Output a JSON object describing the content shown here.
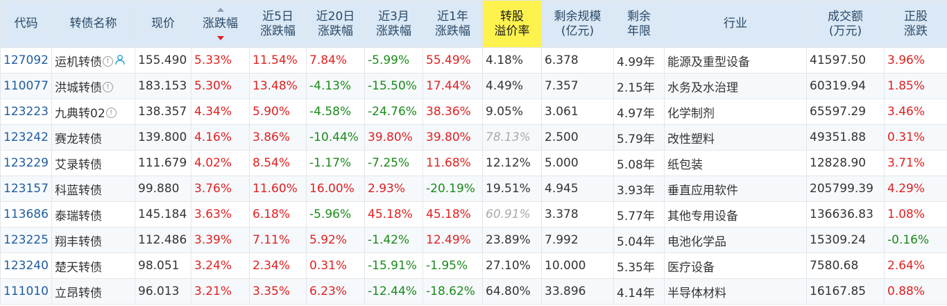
{
  "headers": [
    [
      "代码"
    ],
    [
      "转债名称"
    ],
    [
      "现价"
    ],
    [
      "涨跌幅"
    ],
    [
      "近5日",
      "涨跌幅"
    ],
    [
      "近20日",
      "涨跌幅"
    ],
    [
      "近3月",
      "涨跌幅"
    ],
    [
      "近1年",
      "涨跌幅"
    ],
    [
      "转股",
      "溢价率"
    ],
    [
      "剩余规模",
      "(亿元)"
    ],
    [
      "剩余",
      "年限"
    ],
    [
      "行业"
    ],
    [
      "成交额",
      "(万元)"
    ],
    [
      "正股",
      "涨跌"
    ]
  ],
  "sort_column": "涨跌幅",
  "highlight_column": "转股溢价率",
  "rows": [
    {
      "code": "127092",
      "name": "运机转债",
      "info": true,
      "person": true,
      "price": "155.490",
      "chg": "5.33%",
      "chg5": "11.54%",
      "chg20": "7.84%",
      "chg3m": "-5.99%",
      "chg1y": "55.49%",
      "premium": "4.18%",
      "premium_grey": false,
      "scale": "6.378",
      "years": "4.99年",
      "industry": "能源及重型设备",
      "turnover": "41597.50",
      "stock_chg": "3.96%"
    },
    {
      "code": "110077",
      "name": "洪城转债",
      "info": true,
      "person": false,
      "price": "183.153",
      "chg": "5.30%",
      "chg5": "13.48%",
      "chg20": "-4.13%",
      "chg3m": "-15.50%",
      "chg1y": "17.44%",
      "premium": "4.49%",
      "premium_grey": false,
      "scale": "7.357",
      "years": "2.15年",
      "industry": "水务及水治理",
      "turnover": "60319.94",
      "stock_chg": "1.85%"
    },
    {
      "code": "123223",
      "name": "九典转02",
      "info": true,
      "person": false,
      "price": "138.357",
      "chg": "4.34%",
      "chg5": "5.90%",
      "chg20": "-4.58%",
      "chg3m": "-24.76%",
      "chg1y": "38.36%",
      "premium": "9.05%",
      "premium_grey": false,
      "scale": "3.061",
      "years": "4.97年",
      "industry": "化学制剂",
      "turnover": "65597.29",
      "stock_chg": "3.46%"
    },
    {
      "code": "123242",
      "name": "赛龙转债",
      "info": false,
      "person": false,
      "price": "139.800",
      "chg": "4.16%",
      "chg5": "3.86%",
      "chg20": "-10.44%",
      "chg3m": "39.80%",
      "chg1y": "39.80%",
      "premium": "78.13%",
      "premium_grey": true,
      "scale": "2.500",
      "years": "5.79年",
      "industry": "改性塑料",
      "turnover": "49351.88",
      "stock_chg": "0.31%"
    },
    {
      "code": "123229",
      "name": "艾录转债",
      "info": false,
      "person": false,
      "price": "111.679",
      "chg": "4.02%",
      "chg5": "8.54%",
      "chg20": "-1.17%",
      "chg3m": "-7.25%",
      "chg1y": "11.68%",
      "premium": "12.12%",
      "premium_grey": false,
      "scale": "5.000",
      "years": "5.08年",
      "industry": "纸包装",
      "turnover": "12828.90",
      "stock_chg": "3.71%"
    },
    {
      "code": "123157",
      "name": "科蓝转债",
      "info": false,
      "person": false,
      "price": "99.880",
      "chg": "3.76%",
      "chg5": "11.60%",
      "chg20": "16.00%",
      "chg3m": "2.93%",
      "chg1y": "-20.19%",
      "premium": "19.51%",
      "premium_grey": false,
      "scale": "4.945",
      "years": "3.93年",
      "industry": "垂直应用软件",
      "turnover": "205799.39",
      "stock_chg": "4.29%"
    },
    {
      "code": "113686",
      "name": "泰瑞转债",
      "info": false,
      "person": false,
      "price": "145.184",
      "chg": "3.63%",
      "chg5": "6.18%",
      "chg20": "-5.96%",
      "chg3m": "45.18%",
      "chg1y": "45.18%",
      "premium": "60.91%",
      "premium_grey": true,
      "scale": "3.378",
      "years": "5.77年",
      "industry": "其他专用设备",
      "turnover": "136636.83",
      "stock_chg": "1.08%"
    },
    {
      "code": "123225",
      "name": "翔丰转债",
      "info": false,
      "person": false,
      "price": "112.486",
      "chg": "3.39%",
      "chg5": "7.11%",
      "chg20": "5.92%",
      "chg3m": "-1.42%",
      "chg1y": "12.49%",
      "premium": "23.89%",
      "premium_grey": false,
      "scale": "7.992",
      "years": "5.04年",
      "industry": "电池化学品",
      "turnover": "15309.24",
      "stock_chg": "-0.16%"
    },
    {
      "code": "123240",
      "name": "楚天转债",
      "info": false,
      "person": false,
      "price": "98.051",
      "chg": "3.24%",
      "chg5": "2.34%",
      "chg20": "0.31%",
      "chg3m": "-15.91%",
      "chg1y": "-1.95%",
      "premium": "27.10%",
      "premium_grey": false,
      "scale": "10.000",
      "years": "5.35年",
      "industry": "医疗设备",
      "turnover": "7580.68",
      "stock_chg": "2.64%"
    },
    {
      "code": "111010",
      "name": "立昂转债",
      "info": false,
      "person": false,
      "price": "96.013",
      "chg": "3.21%",
      "chg5": "3.35%",
      "chg20": "6.23%",
      "chg3m": "-12.44%",
      "chg1y": "-18.62%",
      "premium": "64.80%",
      "premium_grey": false,
      "scale": "33.896",
      "years": "4.14年",
      "industry": "半导体材料",
      "turnover": "16167.85",
      "stock_chg": "0.88%"
    }
  ]
}
